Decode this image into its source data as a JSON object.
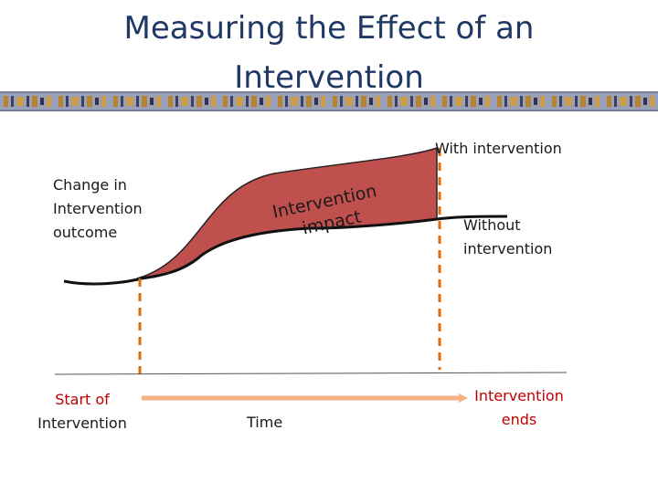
{
  "slide": {
    "title_line1": "Measuring the Effect of an",
    "title_line2": "Intervention"
  },
  "labels": {
    "with_intervention": "With intervention",
    "change_line1": "Change in",
    "change_line2": "Intervention",
    "change_line3": "outcome",
    "without_line1": "Without",
    "without_line2": "intervention",
    "impact_line1": "Intervention",
    "impact_line2": "impact",
    "start_line1": "Start of",
    "start_line2": "Intervention",
    "time": "Time",
    "ends_line1": "Intervention",
    "ends_line2": "ends"
  },
  "colors": {
    "title": "#1f3864",
    "impact_fill": "#c0504d",
    "marker": "#e36c0a",
    "time_arrow": "#f4b183",
    "accent_red": "#c00000"
  }
}
